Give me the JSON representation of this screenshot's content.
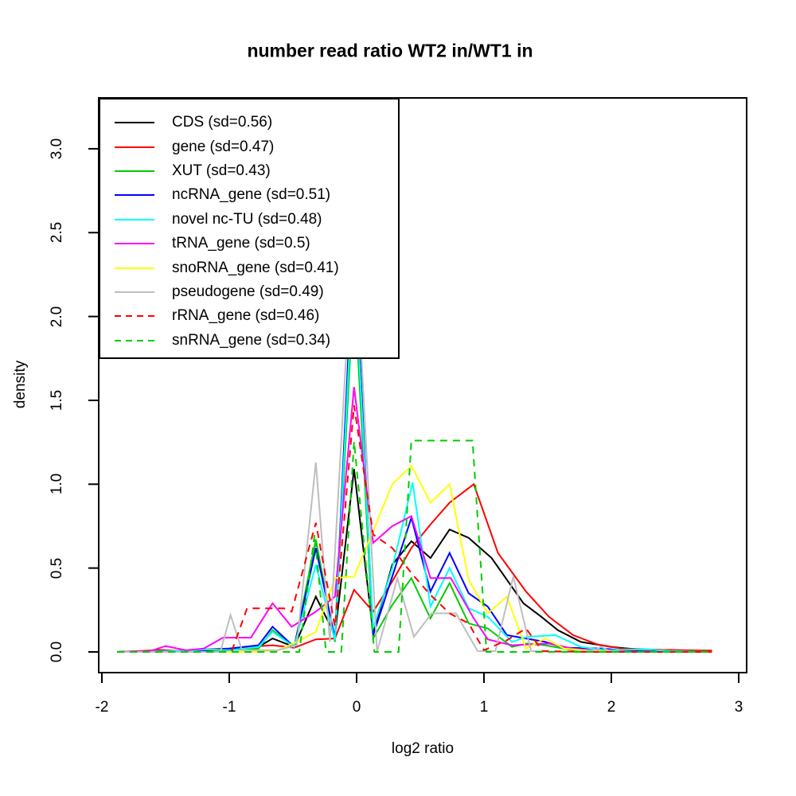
{
  "title": "number read ratio WT2 in/WT1 in",
  "chart_data": {
    "type": "line",
    "title": "number read ratio WT2 in/WT1 in",
    "xlabel": "log2 ratio",
    "ylabel": "density",
    "xlim": [
      -2.03,
      3.06
    ],
    "ylim": [
      0,
      3.3
    ],
    "grid": false,
    "legend_position": "top-left",
    "x_ticks": [
      {
        "v": -2,
        "label": "-2"
      },
      {
        "v": -1,
        "label": "-1"
      },
      {
        "v": 0,
        "label": "0"
      },
      {
        "v": 1,
        "label": "1"
      },
      {
        "v": 2,
        "label": "2"
      },
      {
        "v": 3,
        "label": "3"
      }
    ],
    "y_ticks": [
      {
        "v": 0,
        "label": "0.0"
      },
      {
        "v": 0.5,
        "label": "0.5"
      },
      {
        "v": 1,
        "label": "1.0"
      },
      {
        "v": 1.5,
        "label": "1.5"
      },
      {
        "v": 2,
        "label": "2.0"
      },
      {
        "v": 2.5,
        "label": "2.5"
      },
      {
        "v": 3,
        "label": "3.0"
      }
    ],
    "series": [
      {
        "name": "CDS",
        "label": "CDS (sd=0.56)",
        "color": "#000000",
        "dash": false,
        "points": [
          [
            -1.88,
            0
          ],
          [
            -1.6,
            0.005
          ],
          [
            -1.35,
            0.005
          ],
          [
            -1.1,
            0.01
          ],
          [
            -0.92,
            0.02
          ],
          [
            -0.77,
            0.03
          ],
          [
            -0.66,
            0.08
          ],
          [
            -0.49,
            0.03
          ],
          [
            -0.32,
            0.33
          ],
          [
            -0.17,
            0.1
          ],
          [
            -0.02,
            1.09
          ],
          [
            0.13,
            0.11
          ],
          [
            0.28,
            0.52
          ],
          [
            0.43,
            0.66
          ],
          [
            0.58,
            0.56
          ],
          [
            0.73,
            0.73
          ],
          [
            0.88,
            0.68
          ],
          [
            1.06,
            0.56
          ],
          [
            1.31,
            0.29
          ],
          [
            1.45,
            0.21
          ],
          [
            1.58,
            0.13
          ],
          [
            1.76,
            0.06
          ],
          [
            2.0,
            0.03
          ],
          [
            2.2,
            0.015
          ],
          [
            2.5,
            0.01
          ],
          [
            2.79,
            0.005
          ]
        ]
      },
      {
        "name": "gene",
        "label": "gene (sd=0.47)",
        "color": "#ff0000",
        "dash": false,
        "points": [
          [
            -1.88,
            0
          ],
          [
            -1.7,
            0.005
          ],
          [
            -1.55,
            0.012
          ],
          [
            -1.4,
            0.005
          ],
          [
            -1.2,
            0.015
          ],
          [
            -1.0,
            0.02
          ],
          [
            -0.85,
            0.03
          ],
          [
            -0.66,
            0.04
          ],
          [
            -0.49,
            0.025
          ],
          [
            -0.32,
            0.075
          ],
          [
            -0.17,
            0.08
          ],
          [
            -0.02,
            0.37
          ],
          [
            0.13,
            0.24
          ],
          [
            0.28,
            0.42
          ],
          [
            0.43,
            0.62
          ],
          [
            0.58,
            0.76
          ],
          [
            0.73,
            0.89
          ],
          [
            0.92,
            1.0
          ],
          [
            1.11,
            0.59
          ],
          [
            1.33,
            0.36
          ],
          [
            1.51,
            0.21
          ],
          [
            1.7,
            0.1
          ],
          [
            1.89,
            0.045
          ],
          [
            2.08,
            0.02
          ],
          [
            2.4,
            0.012
          ],
          [
            2.79,
            0.008
          ]
        ]
      },
      {
        "name": "XUT",
        "label": "XUT (sd=0.43)",
        "color": "#00cd00",
        "dash": false,
        "points": [
          [
            -1.88,
            0
          ],
          [
            -1.2,
            0
          ],
          [
            -1.0,
            0.01
          ],
          [
            -0.77,
            0.02
          ],
          [
            -0.66,
            0.13
          ],
          [
            -0.49,
            0.03
          ],
          [
            -0.32,
            0.67
          ],
          [
            -0.17,
            0.06
          ],
          [
            -0.02,
            2.2
          ],
          [
            0.13,
            0.08
          ],
          [
            0.28,
            0.28
          ],
          [
            0.43,
            0.44
          ],
          [
            0.58,
            0.2
          ],
          [
            0.73,
            0.41
          ],
          [
            0.88,
            0.17
          ],
          [
            1.03,
            0.14
          ],
          [
            1.22,
            0.03
          ],
          [
            1.34,
            0.05
          ],
          [
            1.48,
            0.04
          ],
          [
            1.7,
            0.01
          ],
          [
            1.95,
            0.005
          ],
          [
            2.3,
            0
          ],
          [
            2.79,
            0
          ]
        ]
      },
      {
        "name": "ncRNA_gene",
        "label": "ncRNA_gene (sd=0.51)",
        "color": "#0000ff",
        "dash": false,
        "points": [
          [
            -1.88,
            0
          ],
          [
            -1.4,
            0.005
          ],
          [
            -1.2,
            0.01
          ],
          [
            -1.0,
            0.02
          ],
          [
            -0.77,
            0.04
          ],
          [
            -0.66,
            0.15
          ],
          [
            -0.49,
            0.03
          ],
          [
            -0.32,
            0.62
          ],
          [
            -0.17,
            0.08
          ],
          [
            -0.02,
            2.5
          ],
          [
            0.13,
            0.1
          ],
          [
            0.28,
            0.45
          ],
          [
            0.43,
            0.8
          ],
          [
            0.58,
            0.36
          ],
          [
            0.73,
            0.59
          ],
          [
            0.88,
            0.35
          ],
          [
            1.03,
            0.27
          ],
          [
            1.18,
            0.1
          ],
          [
            1.33,
            0.08
          ],
          [
            1.48,
            0.06
          ],
          [
            1.63,
            0.025
          ],
          [
            1.93,
            0.02
          ],
          [
            2.15,
            0.005
          ],
          [
            2.5,
            0
          ],
          [
            2.79,
            0
          ]
        ]
      },
      {
        "name": "novel nc-TU",
        "label": "novel nc-TU (sd=0.48)",
        "color": "#00ffff",
        "dash": false,
        "points": [
          [
            -1.88,
            0
          ],
          [
            -1.35,
            0.005
          ],
          [
            -1.18,
            0.015
          ],
          [
            -1.0,
            0.01
          ],
          [
            -0.77,
            0.03
          ],
          [
            -0.66,
            0.12
          ],
          [
            -0.49,
            0.03
          ],
          [
            -0.32,
            0.52
          ],
          [
            -0.17,
            0.07
          ],
          [
            -0.02,
            2.35
          ],
          [
            0.13,
            0.14
          ],
          [
            0.28,
            0.5
          ],
          [
            0.44,
            1.01
          ],
          [
            0.58,
            0.27
          ],
          [
            0.73,
            0.5
          ],
          [
            0.88,
            0.26
          ],
          [
            1.03,
            0.21
          ],
          [
            1.22,
            0.06
          ],
          [
            1.34,
            0.09
          ],
          [
            1.56,
            0.1
          ],
          [
            1.76,
            0.03
          ],
          [
            1.95,
            0.01
          ],
          [
            2.28,
            0.015
          ],
          [
            2.45,
            0.005
          ],
          [
            2.79,
            0
          ]
        ]
      },
      {
        "name": "tRNA_gene",
        "label": "tRNA_gene (sd=0.5)",
        "color": "#ff00ff",
        "dash": false,
        "points": [
          [
            -1.88,
            0
          ],
          [
            -1.62,
            0.005
          ],
          [
            -1.5,
            0.035
          ],
          [
            -1.34,
            0.01
          ],
          [
            -1.2,
            0.02
          ],
          [
            -1.05,
            0.085
          ],
          [
            -0.83,
            0.085
          ],
          [
            -0.66,
            0.29
          ],
          [
            -0.51,
            0.15
          ],
          [
            -0.32,
            0.24
          ],
          [
            -0.17,
            0.33
          ],
          [
            -0.02,
            1.58
          ],
          [
            0.13,
            0.65
          ],
          [
            0.28,
            0.75
          ],
          [
            0.43,
            0.81
          ],
          [
            0.58,
            0.44
          ],
          [
            0.74,
            0.44
          ],
          [
            0.92,
            0.2
          ],
          [
            1.03,
            0.075
          ],
          [
            1.22,
            0.04
          ],
          [
            1.51,
            0.05
          ],
          [
            1.7,
            0.02
          ],
          [
            1.9,
            0.005
          ],
          [
            2.2,
            0
          ],
          [
            2.79,
            0
          ]
        ]
      },
      {
        "name": "snoRNA_gene",
        "label": "snoRNA_gene (sd=0.41)",
        "color": "#ffff00",
        "dash": false,
        "points": [
          [
            -1.88,
            0
          ],
          [
            -0.77,
            0
          ],
          [
            -0.62,
            0.01
          ],
          [
            -0.47,
            0.06
          ],
          [
            -0.32,
            0.12
          ],
          [
            -0.17,
            0.44
          ],
          [
            -0.02,
            0.45
          ],
          [
            0.13,
            0.72
          ],
          [
            0.28,
            1.0
          ],
          [
            0.43,
            1.11
          ],
          [
            0.58,
            0.89
          ],
          [
            0.73,
            1.0
          ],
          [
            0.88,
            0.43
          ],
          [
            1.03,
            0.23
          ],
          [
            1.18,
            0.33
          ],
          [
            1.33,
            0.02
          ],
          [
            1.48,
            0.08
          ],
          [
            1.63,
            0.02
          ],
          [
            1.85,
            0.005
          ],
          [
            2.1,
            0
          ],
          [
            2.79,
            0
          ]
        ]
      },
      {
        "name": "pseudogene",
        "label": "pseudogene (sd=0.49)",
        "color": "#bebebe",
        "dash": false,
        "points": [
          [
            -1.88,
            0
          ],
          [
            -1.07,
            0
          ],
          [
            -0.99,
            0.22
          ],
          [
            -0.9,
            0.01
          ],
          [
            -0.62,
            0.01
          ],
          [
            -0.47,
            0.04
          ],
          [
            -0.32,
            1.13
          ],
          [
            -0.21,
            0.06
          ],
          [
            -0.02,
            2.6
          ],
          [
            0.16,
            0
          ],
          [
            0.32,
            0.44
          ],
          [
            0.45,
            0.09
          ],
          [
            0.59,
            0.23
          ],
          [
            0.78,
            0.23
          ],
          [
            0.95,
            0.005
          ],
          [
            1.09,
            0.005
          ],
          [
            1.23,
            0.45
          ],
          [
            1.37,
            0.005
          ],
          [
            1.6,
            0
          ],
          [
            1.85,
            0.005
          ],
          [
            1.92,
            0.03
          ],
          [
            2.0,
            0
          ],
          [
            2.79,
            0
          ]
        ]
      },
      {
        "name": "rRNA_gene",
        "label": "rRNA_gene (sd=0.46)",
        "color": "#ff0000",
        "dash": true,
        "points": [
          [
            -1.88,
            0
          ],
          [
            -1.07,
            0
          ],
          [
            -0.98,
            0.005
          ],
          [
            -0.86,
            0.26
          ],
          [
            -0.57,
            0.26
          ],
          [
            -0.51,
            0.24
          ],
          [
            -0.32,
            0.77
          ],
          [
            -0.17,
            0.15
          ],
          [
            -0.02,
            1.47
          ],
          [
            0.13,
            0.7
          ],
          [
            0.28,
            0.62
          ],
          [
            0.43,
            0.47
          ],
          [
            0.58,
            0.34
          ],
          [
            0.73,
            0.23
          ],
          [
            0.88,
            0.17
          ],
          [
            1.0,
            0.01
          ],
          [
            1.18,
            0.07
          ],
          [
            1.33,
            0.14
          ],
          [
            1.46,
            0.005
          ],
          [
            1.8,
            0
          ],
          [
            2.79,
            0
          ]
        ]
      },
      {
        "name": "snRNA_gene",
        "label": "snRNA_gene (sd=0.34)",
        "color": "#00cd00",
        "dash": true,
        "points": [
          [
            -1.88,
            0
          ],
          [
            -0.45,
            0
          ],
          [
            -0.33,
            0.7
          ],
          [
            -0.24,
            0
          ],
          [
            -0.12,
            0
          ],
          [
            -0.02,
            1.255
          ],
          [
            0.14,
            0
          ],
          [
            0.33,
            0
          ],
          [
            0.43,
            1.26
          ],
          [
            0.91,
            1.26
          ],
          [
            1.02,
            0
          ],
          [
            2.79,
            0
          ]
        ]
      }
    ]
  }
}
